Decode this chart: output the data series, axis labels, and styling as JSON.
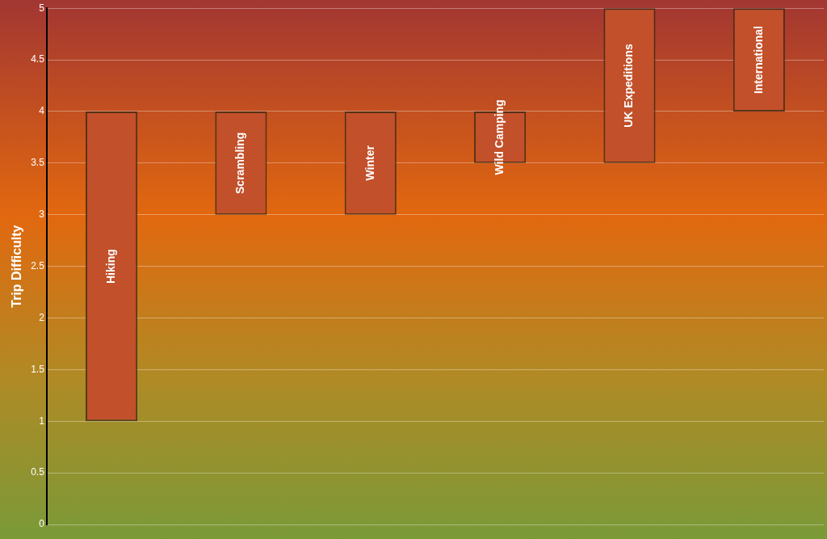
{
  "chart_data": {
    "type": "bar",
    "ylabel": "Trip Difficulty",
    "categories": [
      "Hiking",
      "Scrambling",
      "Winter",
      "Wild Camping",
      "UK Expeditions",
      "International"
    ],
    "base": [
      1,
      3,
      3,
      3.5,
      3.5,
      4
    ],
    "values": [
      3,
      1,
      1,
      0.5,
      1.5,
      1
    ],
    "color": "#c2502a",
    "ylim": [
      0,
      5
    ],
    "yticks": [
      0,
      0.5,
      1,
      1.5,
      2,
      2.5,
      3,
      3.5,
      4,
      4.5,
      5
    ],
    "grid": "y",
    "tick_labels": "y"
  }
}
